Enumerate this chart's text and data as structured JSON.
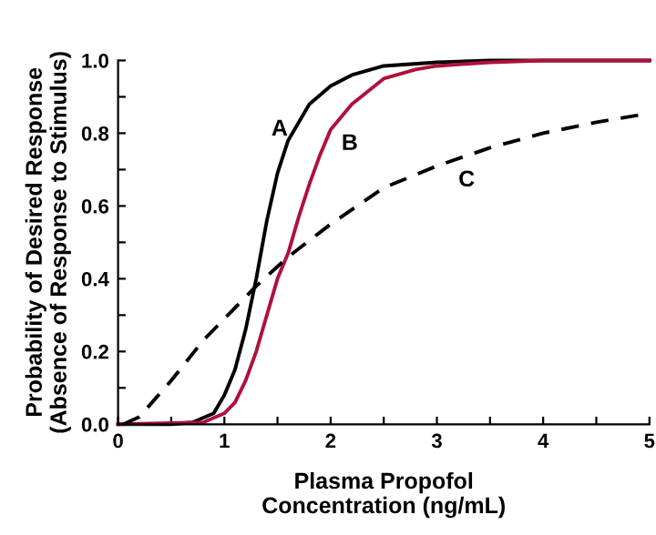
{
  "chart_data": {
    "type": "line",
    "xlabel": "Plasma Propofol\nConcentration (ng/mL)",
    "ylabel": "Probability of Desired Response\n(Absence of Response to Stimulus)",
    "series": [
      {
        "name": "A",
        "color": "#000000",
        "line_style": "solid",
        "x": [
          0,
          0.5,
          0.7,
          0.9,
          1.0,
          1.1,
          1.2,
          1.3,
          1.4,
          1.5,
          1.6,
          1.8,
          2.0,
          2.2,
          2.5,
          3.0,
          3.5,
          5.0
        ],
        "values": [
          0,
          0,
          0.005,
          0.03,
          0.08,
          0.15,
          0.26,
          0.4,
          0.56,
          0.69,
          0.78,
          0.88,
          0.93,
          0.96,
          0.985,
          0.995,
          1.0,
          1.0
        ]
      },
      {
        "name": "B",
        "color": "#b0103c",
        "line_style": "solid",
        "x": [
          0,
          0.8,
          1.0,
          1.1,
          1.2,
          1.3,
          1.4,
          1.5,
          1.6,
          1.7,
          1.8,
          1.9,
          2.0,
          2.2,
          2.5,
          2.8,
          3.0,
          3.5,
          4.0,
          5.0
        ],
        "values": [
          0,
          0.005,
          0.03,
          0.06,
          0.12,
          0.2,
          0.3,
          0.4,
          0.47,
          0.57,
          0.66,
          0.74,
          0.81,
          0.88,
          0.95,
          0.975,
          0.985,
          0.995,
          1.0,
          1.0
        ]
      },
      {
        "name": "C",
        "color": "#000000",
        "line_style": "dashed",
        "x": [
          0.05,
          0.2,
          0.5,
          0.8,
          1.0,
          1.3,
          1.6,
          2.0,
          2.5,
          3.0,
          3.5,
          4.0,
          4.5,
          4.9
        ],
        "values": [
          0.0,
          0.02,
          0.12,
          0.23,
          0.29,
          0.38,
          0.46,
          0.55,
          0.65,
          0.71,
          0.76,
          0.8,
          0.83,
          0.85
        ]
      }
    ],
    "xlim": [
      0,
      5
    ],
    "xticks": [
      0,
      {
        "value": 0.5,
        "label": null
      },
      1,
      {
        "value": 1.5,
        "label": null
      },
      2,
      {
        "value": 2.5,
        "label": null
      },
      3,
      {
        "value": 3.5,
        "label": null
      },
      4,
      {
        "value": 4.5,
        "label": null
      },
      5
    ],
    "ylim": [
      0,
      1
    ],
    "yticks": [
      {
        "value": 0,
        "label": "0.0"
      },
      {
        "value": 0.1,
        "label": null
      },
      {
        "value": 0.2,
        "label": "0.2"
      },
      {
        "value": 0.3,
        "label": null
      },
      {
        "value": 0.4,
        "label": "0.4"
      },
      {
        "value": 0.5,
        "label": null
      },
      {
        "value": 0.6,
        "label": "0.6"
      },
      {
        "value": 0.7,
        "label": null
      },
      {
        "value": 0.8,
        "label": "0.8"
      },
      {
        "value": 0.9,
        "label": null
      },
      {
        "value": 1,
        "label": "1.0"
      }
    ],
    "grid": false,
    "legend": false
  }
}
